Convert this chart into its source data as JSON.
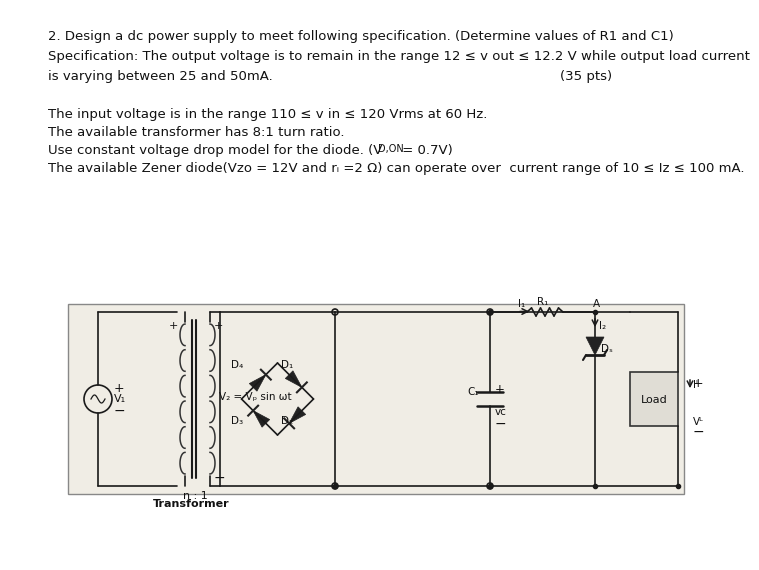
{
  "bg_color": "#ffffff",
  "circuit_bg": "#f0ede5",
  "line1": "2. Design a dc power supply to meet following specification. (Determine values of R1 and C1)",
  "line2": "Specification: The output voltage is to remain in the range 12 ≤ v out ≤ 12.2 V while output load current",
  "line3": "is varying between 25 and 50mA.",
  "line3_right": "(35 pts)",
  "line4": "The input voltage is in the range 110 ≤ v in ≤ 120 Vrms at 60 Hz.",
  "line5": "The available transformer has 8:1 turn ratio.",
  "line6": "Use constant voltage drop model for the diode. (VD,ON = 0.7V)",
  "line6_sub": "D,ON",
  "line7": "The available Zener diode(Vzo = 12V and rᵢ =2 Ω) can operate over  current range of 10 ≤ Iz ≤ 100 mA.",
  "transformer_label": "Transformer",
  "n1_label": "n : 1",
  "v1_label": "V₁",
  "v2_label": "V₂ = Vₚ sin ωt",
  "d4_label": "D₄",
  "d1_label": "D₁",
  "d3_label": "D₃",
  "d2_label": "D₂",
  "r1_label": "R₁",
  "c1_label": "C₁",
  "vc_label": "vᴄ",
  "ds_label": "Dₛ",
  "i1_label": "I₁",
  "i2_label": "I₂",
  "il_label": "Iᴸ",
  "vl_label": "Vᴸ",
  "load_label": "Load",
  "a_label": "A",
  "plus": "+",
  "minus": "−"
}
